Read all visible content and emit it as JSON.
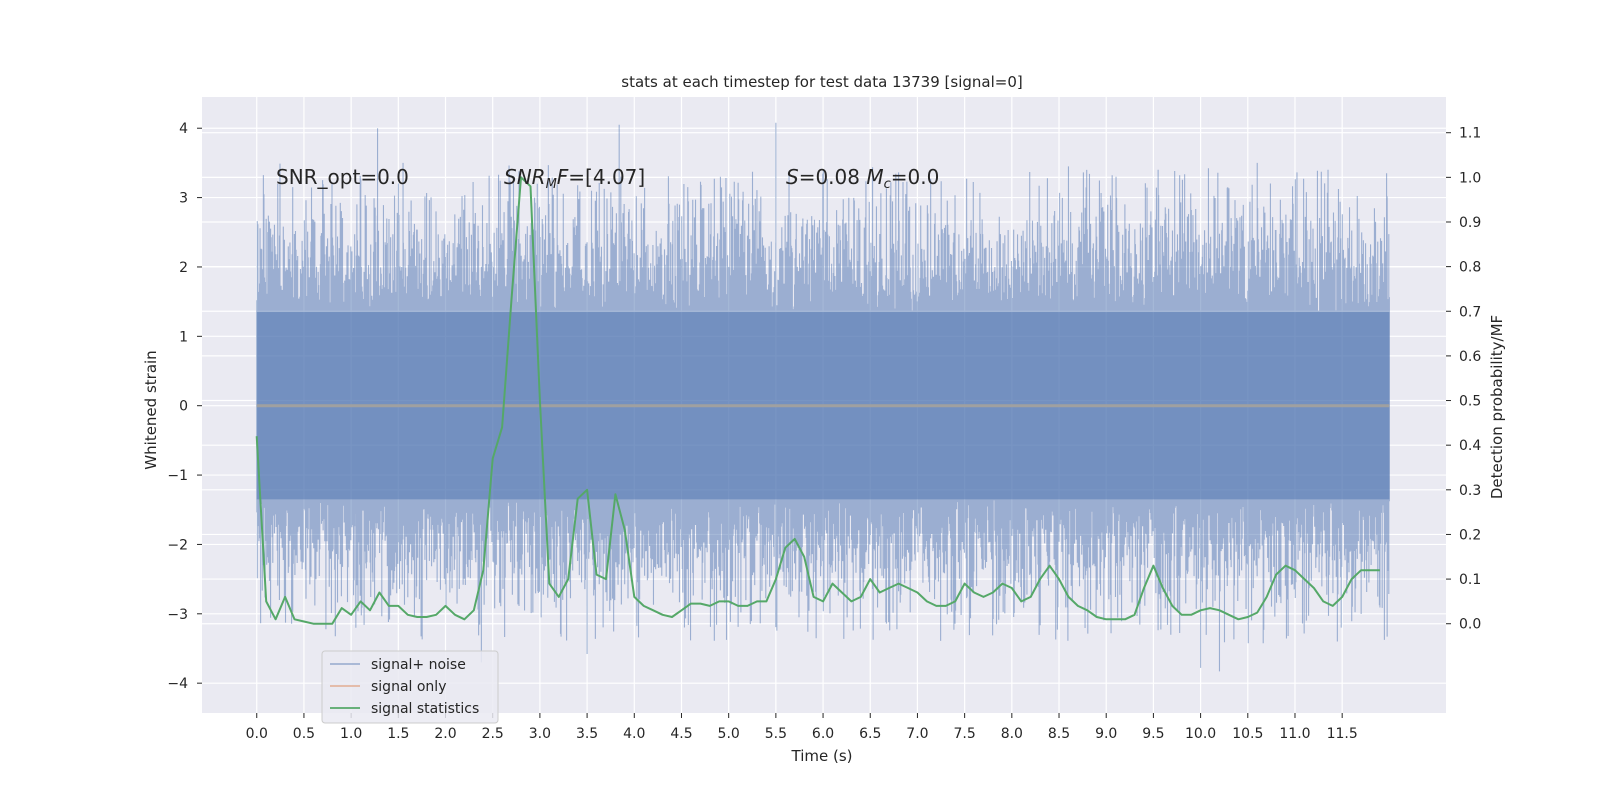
{
  "chart_data": {
    "type": "line",
    "title": "stats at each timestep for test data 13739 [signal=0]",
    "xlabel": "Time (s)",
    "ylabel": "Whitened strain",
    "ylabel_right": "Detection probability/MF",
    "xlim": [
      -0.58,
      12.6
    ],
    "ylim": [
      -4.43,
      4.45
    ],
    "ylim_right": [
      -0.2,
      1.18
    ],
    "xticks": [
      0.0,
      0.5,
      1.0,
      1.5,
      2.0,
      2.5,
      3.0,
      3.5,
      4.0,
      4.5,
      5.0,
      5.5,
      6.0,
      6.5,
      7.0,
      7.5,
      8.0,
      8.5,
      9.0,
      9.5,
      10.0,
      10.5,
      11.0,
      11.5
    ],
    "xtick_labels": [
      "0.0",
      "0.5",
      "1.0",
      "1.5",
      "2.0",
      "2.5",
      "3.0",
      "3.5",
      "4.0",
      "4.5",
      "5.0",
      "5.5",
      "6.0",
      "6.5",
      "7.0",
      "7.5",
      "8.0",
      "8.5",
      "9.0",
      "9.5",
      "10.0",
      "10.5",
      "11.0",
      "11.5"
    ],
    "yticks": [
      -4,
      -3,
      -2,
      -1,
      0,
      1,
      2,
      3,
      4
    ],
    "ytick_labels": [
      "−4",
      "−3",
      "−2",
      "−1",
      "0",
      "1",
      "2",
      "3",
      "4"
    ],
    "yticks_right": [
      0.0,
      0.1,
      0.2,
      0.3,
      0.4,
      0.5,
      0.6,
      0.7,
      0.8,
      0.9,
      1.0,
      1.1
    ],
    "ytick_labels_right": [
      "0.0",
      "0.1",
      "0.2",
      "0.3",
      "0.4",
      "0.5",
      "0.6",
      "0.7",
      "0.8",
      "0.9",
      "1.0",
      "1.1"
    ],
    "grid": true,
    "legend_position": "lower-left",
    "annotations": [
      {
        "text": "SNR_opt=0.0",
        "x": 0.2,
        "y": 3.15
      },
      {
        "text": "SNRMF=[4.07]",
        "x": 2.6,
        "y": 3.15
      },
      {
        "text": "S=0.08   Mc=0.0",
        "x": 5.6,
        "y": 3.15
      }
    ],
    "series": [
      {
        "name": "signal+ noise",
        "color": "#4c72b0",
        "kind": "noise",
        "x_range": [
          0.0,
          12.0
        ],
        "samples": 2048,
        "core_band": 1.35,
        "max_amplitude": 4.1,
        "min_amplitude": -3.83
      },
      {
        "name": "signal only",
        "color": "#dd8452",
        "kind": "line",
        "x": [
          0.0,
          12.0
        ],
        "y": [
          0.0,
          0.0
        ]
      },
      {
        "name": "signal statistics",
        "color": "#55a868",
        "kind": "line",
        "axis": "right",
        "x": [
          0.0,
          0.1,
          0.2,
          0.3,
          0.4,
          0.5,
          0.6,
          0.7,
          0.8,
          0.9,
          1.0,
          1.1,
          1.2,
          1.3,
          1.4,
          1.5,
          1.6,
          1.7,
          1.8,
          1.9,
          2.0,
          2.1,
          2.2,
          2.3,
          2.4,
          2.5,
          2.6,
          2.7,
          2.8,
          2.9,
          3.0,
          3.1,
          3.2,
          3.3,
          3.4,
          3.5,
          3.6,
          3.7,
          3.8,
          3.9,
          4.0,
          4.1,
          4.2,
          4.3,
          4.4,
          4.5,
          4.6,
          4.7,
          4.8,
          4.9,
          5.0,
          5.1,
          5.2,
          5.3,
          5.4,
          5.5,
          5.6,
          5.7,
          5.8,
          5.9,
          6.0,
          6.1,
          6.2,
          6.3,
          6.4,
          6.5,
          6.6,
          6.7,
          6.8,
          6.9,
          7.0,
          7.1,
          7.2,
          7.3,
          7.4,
          7.5,
          7.6,
          7.7,
          7.8,
          7.9,
          8.0,
          8.1,
          8.2,
          8.3,
          8.4,
          8.5,
          8.6,
          8.7,
          8.8,
          8.9,
          9.0,
          9.1,
          9.2,
          9.3,
          9.4,
          9.5,
          9.6,
          9.7,
          9.8,
          9.9,
          10.0,
          10.1,
          10.2,
          10.3,
          10.4,
          10.5,
          10.6,
          10.7,
          10.8,
          10.9,
          11.0,
          11.1,
          11.2,
          11.3,
          11.4,
          11.5,
          11.6,
          11.7,
          11.8,
          11.9
        ],
        "y": [
          0.42,
          0.05,
          0.01,
          0.06,
          0.01,
          0.005,
          0.0,
          0.0,
          0.0,
          0.035,
          0.02,
          0.05,
          0.03,
          0.07,
          0.04,
          0.04,
          0.02,
          0.015,
          0.015,
          0.02,
          0.04,
          0.02,
          0.01,
          0.03,
          0.12,
          0.37,
          0.44,
          0.73,
          1.0,
          0.98,
          0.5,
          0.09,
          0.06,
          0.1,
          0.28,
          0.3,
          0.11,
          0.1,
          0.29,
          0.21,
          0.06,
          0.04,
          0.03,
          0.02,
          0.015,
          0.03,
          0.045,
          0.045,
          0.04,
          0.05,
          0.05,
          0.04,
          0.04,
          0.05,
          0.05,
          0.1,
          0.17,
          0.19,
          0.15,
          0.06,
          0.05,
          0.09,
          0.07,
          0.05,
          0.06,
          0.1,
          0.07,
          0.08,
          0.09,
          0.08,
          0.07,
          0.05,
          0.04,
          0.04,
          0.05,
          0.09,
          0.07,
          0.06,
          0.07,
          0.09,
          0.08,
          0.05,
          0.06,
          0.1,
          0.13,
          0.1,
          0.06,
          0.04,
          0.03,
          0.015,
          0.01,
          0.01,
          0.01,
          0.02,
          0.08,
          0.13,
          0.08,
          0.04,
          0.02,
          0.02,
          0.03,
          0.035,
          0.03,
          0.02,
          0.01,
          0.015,
          0.025,
          0.06,
          0.11,
          0.13,
          0.12,
          0.1,
          0.08,
          0.05,
          0.04,
          0.06,
          0.1,
          0.12,
          0.12,
          0.12
        ]
      }
    ]
  }
}
